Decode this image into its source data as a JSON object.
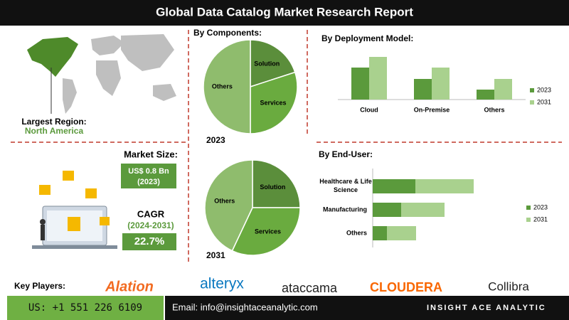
{
  "header": {
    "title": "Global Data Catalog Market Research Report"
  },
  "region": {
    "label": "Largest Region:",
    "value": "North America"
  },
  "market_size": {
    "label": "Market Size:",
    "value": "US$ 0.8 Bn",
    "year": "(2023)"
  },
  "cagr": {
    "label": "CAGR",
    "period": "(2024-2031)",
    "value": "22.7%"
  },
  "key_players": {
    "label": "Key Players:",
    "names": [
      "Alation",
      "alteryx",
      "ataccama",
      "CLOUDERA",
      "Collibra"
    ]
  },
  "footer": {
    "phone": "US: +1 551 226 6109",
    "email": "Email: info@insightaceanalytic.com",
    "brand": "INSIGHT ACE ANALYTIC"
  },
  "chart_data": [
    {
      "type": "pie",
      "title": "By Components:",
      "subtitle": "2023",
      "categories": [
        "Solution",
        "Services",
        "Others"
      ],
      "values": [
        20,
        30,
        50
      ],
      "colors": [
        "#5b8e3b",
        "#6aab3f",
        "#8fbc6d"
      ]
    },
    {
      "type": "pie",
      "subtitle": "2031",
      "categories": [
        "Solution",
        "Services",
        "Others"
      ],
      "values": [
        25,
        32,
        43
      ],
      "colors": [
        "#5b8e3b",
        "#6aab3f",
        "#8fbc6d"
      ]
    },
    {
      "type": "bar",
      "title": "By  Deployment Model:",
      "categories": [
        "Cloud",
        "On-Premise",
        "Others"
      ],
      "series": [
        {
          "name": "2023",
          "color": "#5b9a3c",
          "values": [
            45,
            29,
            14
          ]
        },
        {
          "name": "2031",
          "color": "#a9d18e",
          "values": [
            60,
            45,
            29
          ]
        }
      ],
      "ylim": [
        0,
        60
      ]
    },
    {
      "type": "hbar",
      "title": "By End-User:",
      "categories": [
        "Healthcare & Life Science",
        "Manufacturing",
        "Others"
      ],
      "series": [
        {
          "name": "2023",
          "color": "#5b9a3c",
          "values": [
            60,
            40,
            20
          ]
        },
        {
          "name": "2031",
          "color": "#a9d18e",
          "values": [
            82,
            61,
            41
          ]
        }
      ],
      "xlim": [
        0,
        170
      ]
    }
  ]
}
